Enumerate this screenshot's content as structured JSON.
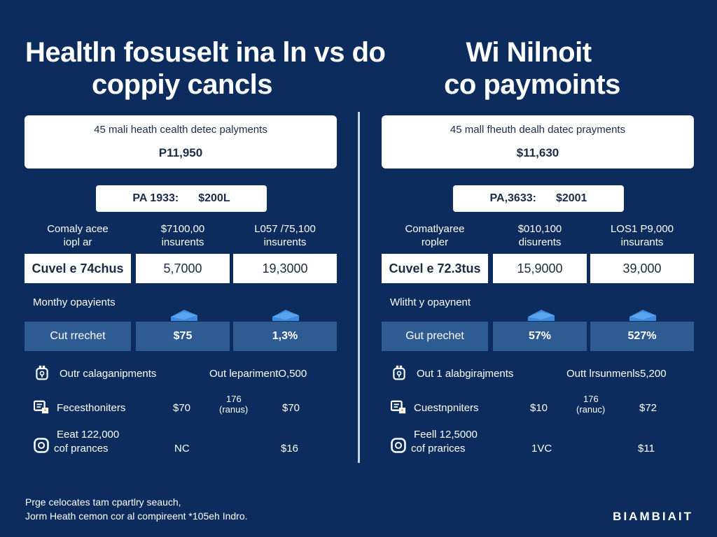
{
  "titles": {
    "left_line1": "Healtln fosuselt ina ln vs do",
    "left_line2": "coppiy cancls",
    "right_line1": "Wi Nilnoit",
    "right_line2": "co paymoints"
  },
  "panels": [
    {
      "top_label": "45 mali heath cealth detec palyments",
      "top_value": "P11,950",
      "pill_label": "PA 1933:",
      "pill_value": "$200L",
      "col_headers": [
        "Comaly acee iopl ar",
        "$7100,00 insurents",
        "L057 /75,100 insurents"
      ],
      "white_row": [
        "Cuvel e 74chus",
        "5,7000",
        "19,3000"
      ],
      "subheading": "Monthy opayients",
      "blue_row": [
        "Cut rrechet",
        "$75",
        "1,3%"
      ],
      "rows": [
        {
          "label": "Outr calaganipments",
          "right": "Out leparimentO,500"
        },
        {
          "label": "Fecesthoniters",
          "v1": "$70",
          "mid_top": "176",
          "mid_bottom": "(ranus)",
          "v2": "$70"
        },
        {
          "label_top": "Eeat 122,000",
          "label": "cof prances",
          "v1": "NC",
          "v2": "$16"
        }
      ]
    },
    {
      "top_label": "45 mall fheuth dealh datec prayments",
      "top_value": "$11,630",
      "pill_label": "PA,3633:",
      "pill_value": "$2001",
      "col_headers": [
        "Comatlyaree ropler",
        "$010,100 disurents",
        "LOS1 P9,000 insurants"
      ],
      "white_row": [
        "Cuvel e 72.3tus",
        "15,9000",
        "39,000"
      ],
      "subheading": "Wlitht y opaynent",
      "blue_row": [
        "Gut prechet",
        "57%",
        "527%"
      ],
      "rows": [
        {
          "label": "Out 1 alabgirajments",
          "right": "Outt lrsunmenls5,200"
        },
        {
          "label": "Cuestnpniters",
          "v1": "$10",
          "mid_top": "176",
          "mid_bottom": "(ranuc)",
          "v2": "$72"
        },
        {
          "label_top": "Feell 12,5000",
          "label": "cof prarices",
          "v1": "1VC",
          "v2": "$11"
        }
      ]
    }
  ],
  "footer": {
    "line1": "Prge celocates tam cpartlry seauch,",
    "line2": "Jorm Heath cemon cor al compireent *105eh Indro.",
    "brand": "BIAMBIAIT"
  },
  "colors": {
    "background": "#0b2c5c",
    "blue_cell": "#2f5b93",
    "accent": "#3d8be0"
  }
}
